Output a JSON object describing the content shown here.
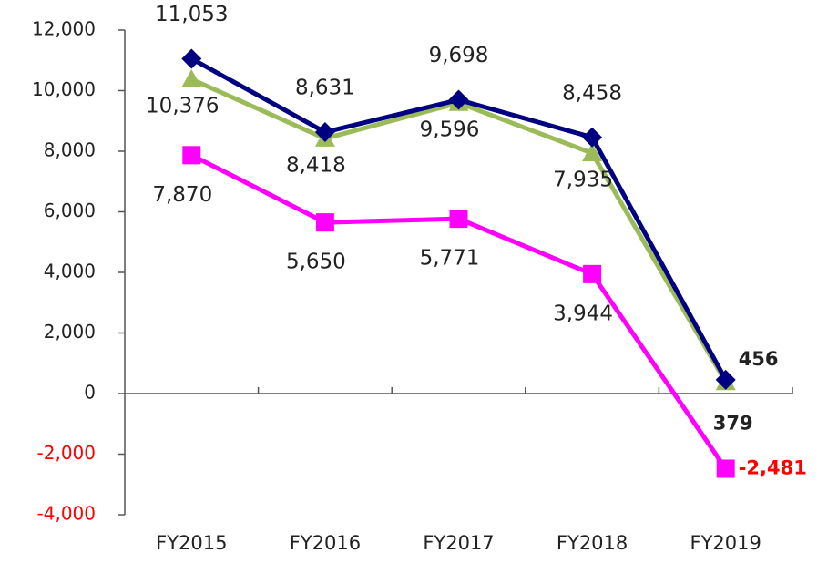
{
  "chart_data": {
    "type": "line",
    "categories": [
      "FY2015",
      "FY2016",
      "FY2017",
      "FY2018",
      "FY2019"
    ],
    "series": [
      {
        "color": "#000080",
        "marker": "diamond",
        "values": [
          11053,
          8631,
          9698,
          8458,
          456
        ],
        "value_labels": [
          "11,053",
          "8,631",
          "9,698",
          "8,458",
          "456"
        ]
      },
      {
        "color": "#9bbb59",
        "marker": "triangle",
        "values": [
          10376,
          8418,
          9596,
          7935,
          379
        ],
        "value_labels": [
          "10,376",
          "8,418",
          "9,596",
          "7,935",
          "379"
        ]
      },
      {
        "color": "#ff00ff",
        "marker": "square",
        "values": [
          7870,
          5650,
          5771,
          3944,
          -2481
        ],
        "value_labels": [
          "7,870",
          "5,650",
          "5,771",
          "3,944",
          "-2,481"
        ]
      }
    ],
    "ylim": [
      -4000,
      12000
    ],
    "yticks": [
      {
        "value": -4000,
        "label": "-4,000"
      },
      {
        "value": -2000,
        "label": "-2,000"
      },
      0,
      {
        "value": 2000,
        "label": "2,000"
      },
      {
        "value": 4000,
        "label": "4,000"
      },
      {
        "value": 6000,
        "label": "6,000"
      },
      {
        "value": 8000,
        "label": "8,000"
      },
      {
        "value": 10000,
        "label": "10,000"
      },
      {
        "value": 12000,
        "label": "12,000"
      }
    ],
    "negative_color": "#ff0000",
    "grid": false
  }
}
